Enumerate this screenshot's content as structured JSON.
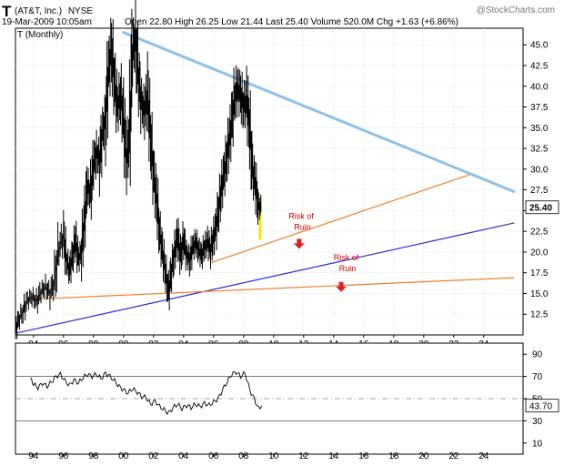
{
  "header": {
    "symbol": "T",
    "company": "(AT&T, Inc.)",
    "exchange": "NYSE",
    "datetime": "19-Mar-2009 10:05am",
    "quote": "Open 22.80  High 26.25  Low 21.44  Last 25.40  Volume 520.0M  Chg +1.63 (+6.86%)",
    "interval": "T (Monthly)",
    "watermark": "@StockCharts.com"
  },
  "chart_data": [
    {
      "type": "line",
      "title": "T (Monthly)",
      "ylim": [
        10,
        47
      ],
      "y_ticks": [
        12.5,
        15.0,
        17.5,
        20.0,
        22.5,
        25.0,
        27.5,
        30.0,
        32.5,
        35.0,
        37.5,
        40.0,
        42.5,
        45.0
      ],
      "y_tick_labels": [
        "12.5",
        "15.0",
        "17.5",
        "20.0",
        "22.5",
        "25.0",
        "27.5",
        "30.0",
        "32.5",
        "35.0",
        "37.5",
        "40.0",
        "42.5",
        "45.0"
      ],
      "x_tick_labels": [
        "94",
        "96",
        "98",
        "00",
        "02",
        "04",
        "06",
        "08",
        "10",
        "12",
        "14",
        "16",
        "18",
        "20",
        "22",
        "24"
      ],
      "last_value_label": "25.40",
      "series": [
        {
          "values": [
            [
              1992.8,
              10.5
            ],
            [
              1993.0,
              11.8
            ],
            [
              1993.3,
              12.8
            ],
            [
              1993.6,
              14.2
            ],
            [
              1993.9,
              14.6
            ],
            [
              1994.2,
              14.0
            ],
            [
              1994.5,
              15.2
            ],
            [
              1994.8,
              15.8
            ],
            [
              1995.1,
              15.0
            ],
            [
              1995.4,
              16.5
            ],
            [
              1995.7,
              20.5
            ],
            [
              1996.0,
              22.0
            ],
            [
              1996.2,
              19.0
            ],
            [
              1996.4,
              17.8
            ],
            [
              1996.6,
              19.5
            ],
            [
              1996.8,
              21.5
            ],
            [
              1997.0,
              19.2
            ],
            [
              1997.2,
              20.0
            ],
            [
              1997.4,
              24.0
            ],
            [
              1997.6,
              28.0
            ],
            [
              1997.8,
              27.0
            ],
            [
              1998.0,
              30.5
            ],
            [
              1998.2,
              32.0
            ],
            [
              1998.4,
              31.0
            ],
            [
              1998.6,
              34.5
            ],
            [
              1998.8,
              36.0
            ],
            [
              1999.0,
              42.0
            ],
            [
              1999.2,
              44.5
            ],
            [
              1999.4,
              40.5
            ],
            [
              1999.6,
              37.5
            ],
            [
              1999.8,
              39.0
            ],
            [
              2000.0,
              36.0
            ],
            [
              2000.2,
              31.0
            ],
            [
              2000.4,
              34.5
            ],
            [
              2000.6,
              44.0
            ],
            [
              2000.8,
              45.8
            ],
            [
              2001.0,
              41.0
            ],
            [
              2001.2,
              38.0
            ],
            [
              2001.4,
              37.0
            ],
            [
              2001.6,
              39.0
            ],
            [
              2001.8,
              34.0
            ],
            [
              2002.0,
              29.5
            ],
            [
              2002.2,
              26.5
            ],
            [
              2002.4,
              22.5
            ],
            [
              2002.6,
              20.0
            ],
            [
              2002.8,
              17.5
            ],
            [
              2003.0,
              15.2
            ],
            [
              2003.2,
              17.8
            ],
            [
              2003.4,
              20.0
            ],
            [
              2003.6,
              22.0
            ],
            [
              2003.8,
              19.5
            ],
            [
              2004.0,
              21.5
            ],
            [
              2004.2,
              19.8
            ],
            [
              2004.4,
              19.0
            ],
            [
              2004.6,
              20.5
            ],
            [
              2004.8,
              21.2
            ],
            [
              2005.0,
              20.3
            ],
            [
              2005.2,
              19.6
            ],
            [
              2005.4,
              20.6
            ],
            [
              2005.6,
              21.3
            ],
            [
              2005.8,
              20.2
            ],
            [
              2006.0,
              21.8
            ],
            [
              2006.2,
              23.5
            ],
            [
              2006.4,
              26.0
            ],
            [
              2006.6,
              28.5
            ],
            [
              2006.8,
              30.5
            ],
            [
              2007.0,
              33.0
            ],
            [
              2007.2,
              35.5
            ],
            [
              2007.4,
              38.5
            ],
            [
              2007.6,
              39.8
            ],
            [
              2007.8,
              39.0
            ],
            [
              2008.0,
              37.5
            ],
            [
              2008.2,
              38.5
            ],
            [
              2008.4,
              35.0
            ],
            [
              2008.6,
              30.0
            ],
            [
              2008.8,
              28.0
            ],
            [
              2009.0,
              25.5
            ],
            [
              2009.2,
              25.4
            ]
          ]
        },
        {
          "name": "RSI",
          "ylim": [
            0,
            100
          ],
          "y_ticks": [
            10,
            30,
            50,
            70,
            90
          ],
          "last_value_label": "43.70",
          "values": [
            [
              1993.8,
              68
            ],
            [
              1994.0,
              63
            ],
            [
              1994.3,
              60
            ],
            [
              1994.6,
              64
            ],
            [
              1994.9,
              61
            ],
            [
              1995.2,
              65
            ],
            [
              1995.5,
              70
            ],
            [
              1995.8,
              72
            ],
            [
              1996.1,
              66
            ],
            [
              1996.4,
              62
            ],
            [
              1996.7,
              67
            ],
            [
              1997.0,
              64
            ],
            [
              1997.3,
              69
            ],
            [
              1997.6,
              72
            ],
            [
              1997.9,
              70
            ],
            [
              1998.2,
              72
            ],
            [
              1998.5,
              68
            ],
            [
              1998.8,
              73
            ],
            [
              1999.1,
              70
            ],
            [
              1999.4,
              66
            ],
            [
              1999.7,
              61
            ],
            [
              2000.0,
              58
            ],
            [
              2000.3,
              55
            ],
            [
              2000.6,
              59
            ],
            [
              2000.9,
              56
            ],
            [
              2001.2,
              52
            ],
            [
              2001.5,
              51
            ],
            [
              2001.8,
              45
            ],
            [
              2002.1,
              48
            ],
            [
              2002.4,
              43
            ],
            [
              2002.7,
              40
            ],
            [
              2003.0,
              37
            ],
            [
              2003.3,
              42
            ],
            [
              2003.6,
              45
            ],
            [
              2003.9,
              41
            ],
            [
              2004.2,
              44
            ],
            [
              2004.5,
              42
            ],
            [
              2004.8,
              45
            ],
            [
              2005.1,
              43
            ],
            [
              2005.4,
              46
            ],
            [
              2005.7,
              44
            ],
            [
              2006.0,
              47
            ],
            [
              2006.3,
              50
            ],
            [
              2006.6,
              58
            ],
            [
              2006.9,
              65
            ],
            [
              2007.2,
              72
            ],
            [
              2007.5,
              74
            ],
            [
              2007.8,
              70
            ],
            [
              2008.1,
              73
            ],
            [
              2008.4,
              58
            ],
            [
              2008.7,
              50
            ],
            [
              2009.0,
              41
            ],
            [
              2009.2,
              43.7
            ]
          ]
        }
      ],
      "annotations": [
        {
          "text": "Risk of Ruin",
          "line1": "Risk of",
          "line2": "Ruin"
        },
        {
          "text": "Risk of Ruin",
          "line1": "Risk of",
          "line2": "Ruin"
        }
      ],
      "trendlines": [
        {
          "name": "upper-resistance",
          "color": "#8ec1ea",
          "from": [
            2000.0,
            46.5
          ],
          "to": [
            2026.0,
            27.3
          ]
        },
        {
          "name": "long-term-support",
          "color": "#2a2acf",
          "from": [
            1992.8,
            10.2
          ],
          "to": [
            2026.0,
            23.5
          ]
        },
        {
          "name": "orange-support-1",
          "color": "#f07f2c",
          "from": [
            1993.8,
            14.3
          ],
          "to": [
            2026.0,
            16.9
          ]
        },
        {
          "name": "orange-support-2",
          "color": "#f07f2c",
          "from": [
            2005.8,
            18.7
          ],
          "to": [
            2023.0,
            29.3
          ]
        },
        {
          "name": "yellow-segment",
          "color": "#f5e600",
          "from": [
            2009.1,
            21.6
          ],
          "to": [
            2009.1,
            26.3
          ]
        }
      ],
      "colors": {
        "price": "#000000",
        "grid": "#cfcfcf",
        "rsi_ref": "#888888",
        "arrow": "#dd2222",
        "annotation": "#cc0000"
      }
    }
  ]
}
